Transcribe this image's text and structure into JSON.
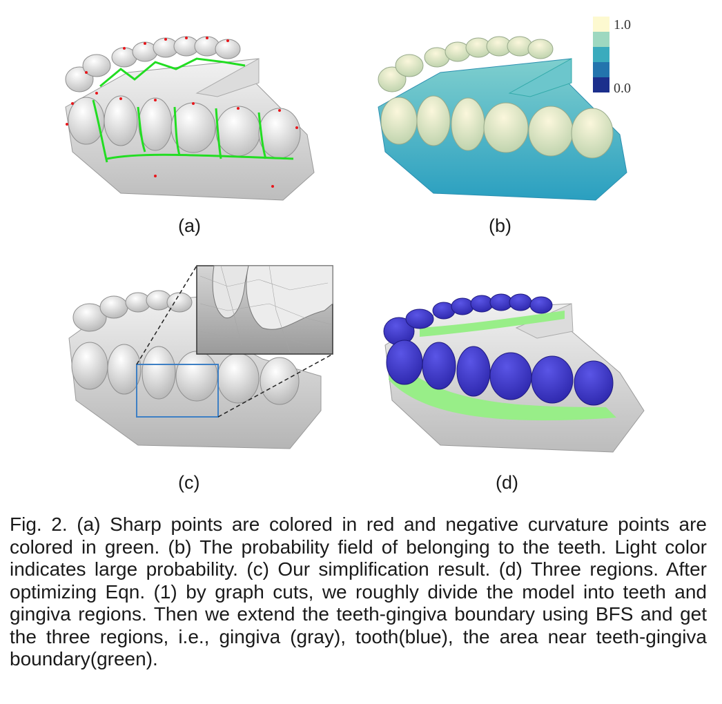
{
  "figure": {
    "panels": [
      {
        "id": "a",
        "label": "(a)"
      },
      {
        "id": "b",
        "label": "(b)"
      },
      {
        "id": "c",
        "label": "(c)"
      },
      {
        "id": "d",
        "label": "(d)"
      }
    ],
    "colorbar": {
      "max_label": "1.0",
      "min_label": "0.0",
      "colors": [
        "#fdf9d0",
        "#9ed8c0",
        "#3aabbd",
        "#2374ad",
        "#1c2f8c"
      ]
    },
    "colors": {
      "sharp_points": "#e8161b",
      "negative_curvature": "#22dd22",
      "tooth_region": "#3a34c8",
      "boundary_region": "#98ee88",
      "gingiva_region": "#d8d8d8",
      "zoom_box": "#3d7fc4"
    },
    "caption": "Fig. 2. (a) Sharp points are colored in red and negative curvature points are colored in green. (b) The probability field of belonging to the teeth. Light color indicates large probability. (c) Our simplification result. (d) Three regions. After optimizing Eqn. (1) by graph cuts, we roughly divide the model into teeth and gingiva regions. Then we extend the teeth-gingiva boundary using BFS and get the three regions, i.e., gingiva (gray), tooth(blue), the area near teeth-gingiva boundary(green)."
  }
}
